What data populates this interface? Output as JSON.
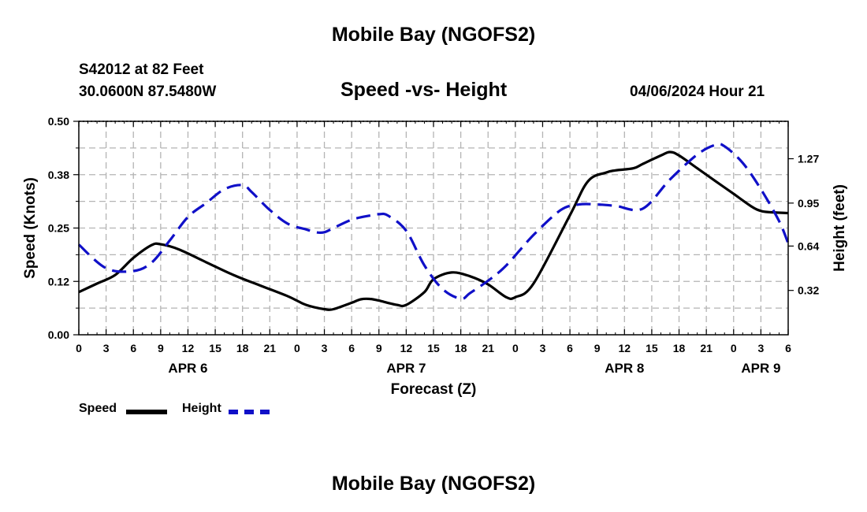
{
  "header": {
    "title": "Mobile Bay (NGOFS2)",
    "station": "S42012 at 82 Feet",
    "coords": "30.0600N  87.5480W",
    "subtitle": "Speed -vs- Height",
    "datetime": "04/06/2024 Hour 21"
  },
  "footer": {
    "title": "Mobile Bay (NGOFS2)"
  },
  "legend": {
    "speed_label": "Speed",
    "height_label": "Height"
  },
  "colors": {
    "speed": "#000000",
    "height": "#1010c8",
    "grid": "#b4b4b4"
  },
  "chart_data": {
    "type": "line",
    "title": "Speed -vs- Height",
    "xlabel": "Forecast (Z)",
    "ylabel": "Speed (Knots)",
    "y2label": "Height (feet)",
    "x_range_hours": [
      0,
      78
    ],
    "x_tick_labels": [
      "0",
      "3",
      "6",
      "9",
      "12",
      "15",
      "18",
      "21",
      "0",
      "3",
      "6",
      "9",
      "12",
      "15",
      "18",
      "21",
      "0",
      "3",
      "6",
      "9",
      "12",
      "15",
      "18",
      "21",
      "0",
      "3",
      "6"
    ],
    "day_labels": [
      {
        "label": "APR 6",
        "hour": 12
      },
      {
        "label": "APR 7",
        "hour": 36
      },
      {
        "label": "APR 8",
        "hour": 60
      },
      {
        "label": "APR 9",
        "hour": 75
      }
    ],
    "ylim": [
      0,
      0.5
    ],
    "y_ticks": [
      "0.00",
      "0.12",
      "0.25",
      "0.38",
      "0.50"
    ],
    "y2lim": [
      0,
      1.54
    ],
    "y2_ticks": [
      "0.32",
      "0.64",
      "0.95",
      "1.27"
    ],
    "grid": true,
    "legend_position": "bottom-left",
    "series": [
      {
        "name": "Speed",
        "axis": "left",
        "style": "solid",
        "x": [
          0,
          2,
          4,
          6,
          8,
          9,
          11,
          14,
          17,
          20,
          23,
          25,
          27,
          28,
          30,
          31,
          32,
          33,
          35,
          36,
          38,
          39,
          41,
          43,
          45,
          47,
          48,
          50,
          54,
          56,
          58,
          59,
          61,
          62,
          64,
          65,
          66,
          68,
          70,
          72,
          74,
          75,
          76,
          78
        ],
        "y": [
          0.1,
          0.12,
          0.14,
          0.18,
          0.21,
          0.212,
          0.2,
          0.17,
          0.14,
          0.115,
          0.09,
          0.07,
          0.06,
          0.06,
          0.075,
          0.083,
          0.084,
          0.08,
          0.07,
          0.07,
          0.1,
          0.13,
          0.146,
          0.137,
          0.118,
          0.088,
          0.088,
          0.12,
          0.28,
          0.36,
          0.38,
          0.385,
          0.39,
          0.4,
          0.42,
          0.428,
          0.42,
          0.39,
          0.36,
          0.33,
          0.3,
          0.29,
          0.287,
          0.285
        ]
      },
      {
        "name": "Height",
        "axis": "right",
        "style": "dashed",
        "x": [
          0,
          3,
          6,
          8,
          10,
          12,
          14,
          16,
          18,
          19,
          21,
          23,
          25,
          26,
          27,
          28,
          30,
          32,
          33,
          34,
          36,
          38,
          40,
          42,
          43,
          45,
          47,
          50,
          53,
          55,
          57,
          59,
          62,
          65,
          68,
          70,
          71,
          73,
          75,
          77,
          78
        ],
        "y": [
          0.65,
          0.48,
          0.46,
          0.52,
          0.68,
          0.85,
          0.95,
          1.05,
          1.08,
          1.03,
          0.9,
          0.8,
          0.76,
          0.74,
          0.74,
          0.77,
          0.83,
          0.86,
          0.87,
          0.86,
          0.75,
          0.5,
          0.33,
          0.26,
          0.3,
          0.39,
          0.5,
          0.72,
          0.9,
          0.94,
          0.94,
          0.93,
          0.91,
          1.12,
          1.3,
          1.37,
          1.36,
          1.24,
          1.05,
          0.82,
          0.66
        ]
      }
    ]
  }
}
